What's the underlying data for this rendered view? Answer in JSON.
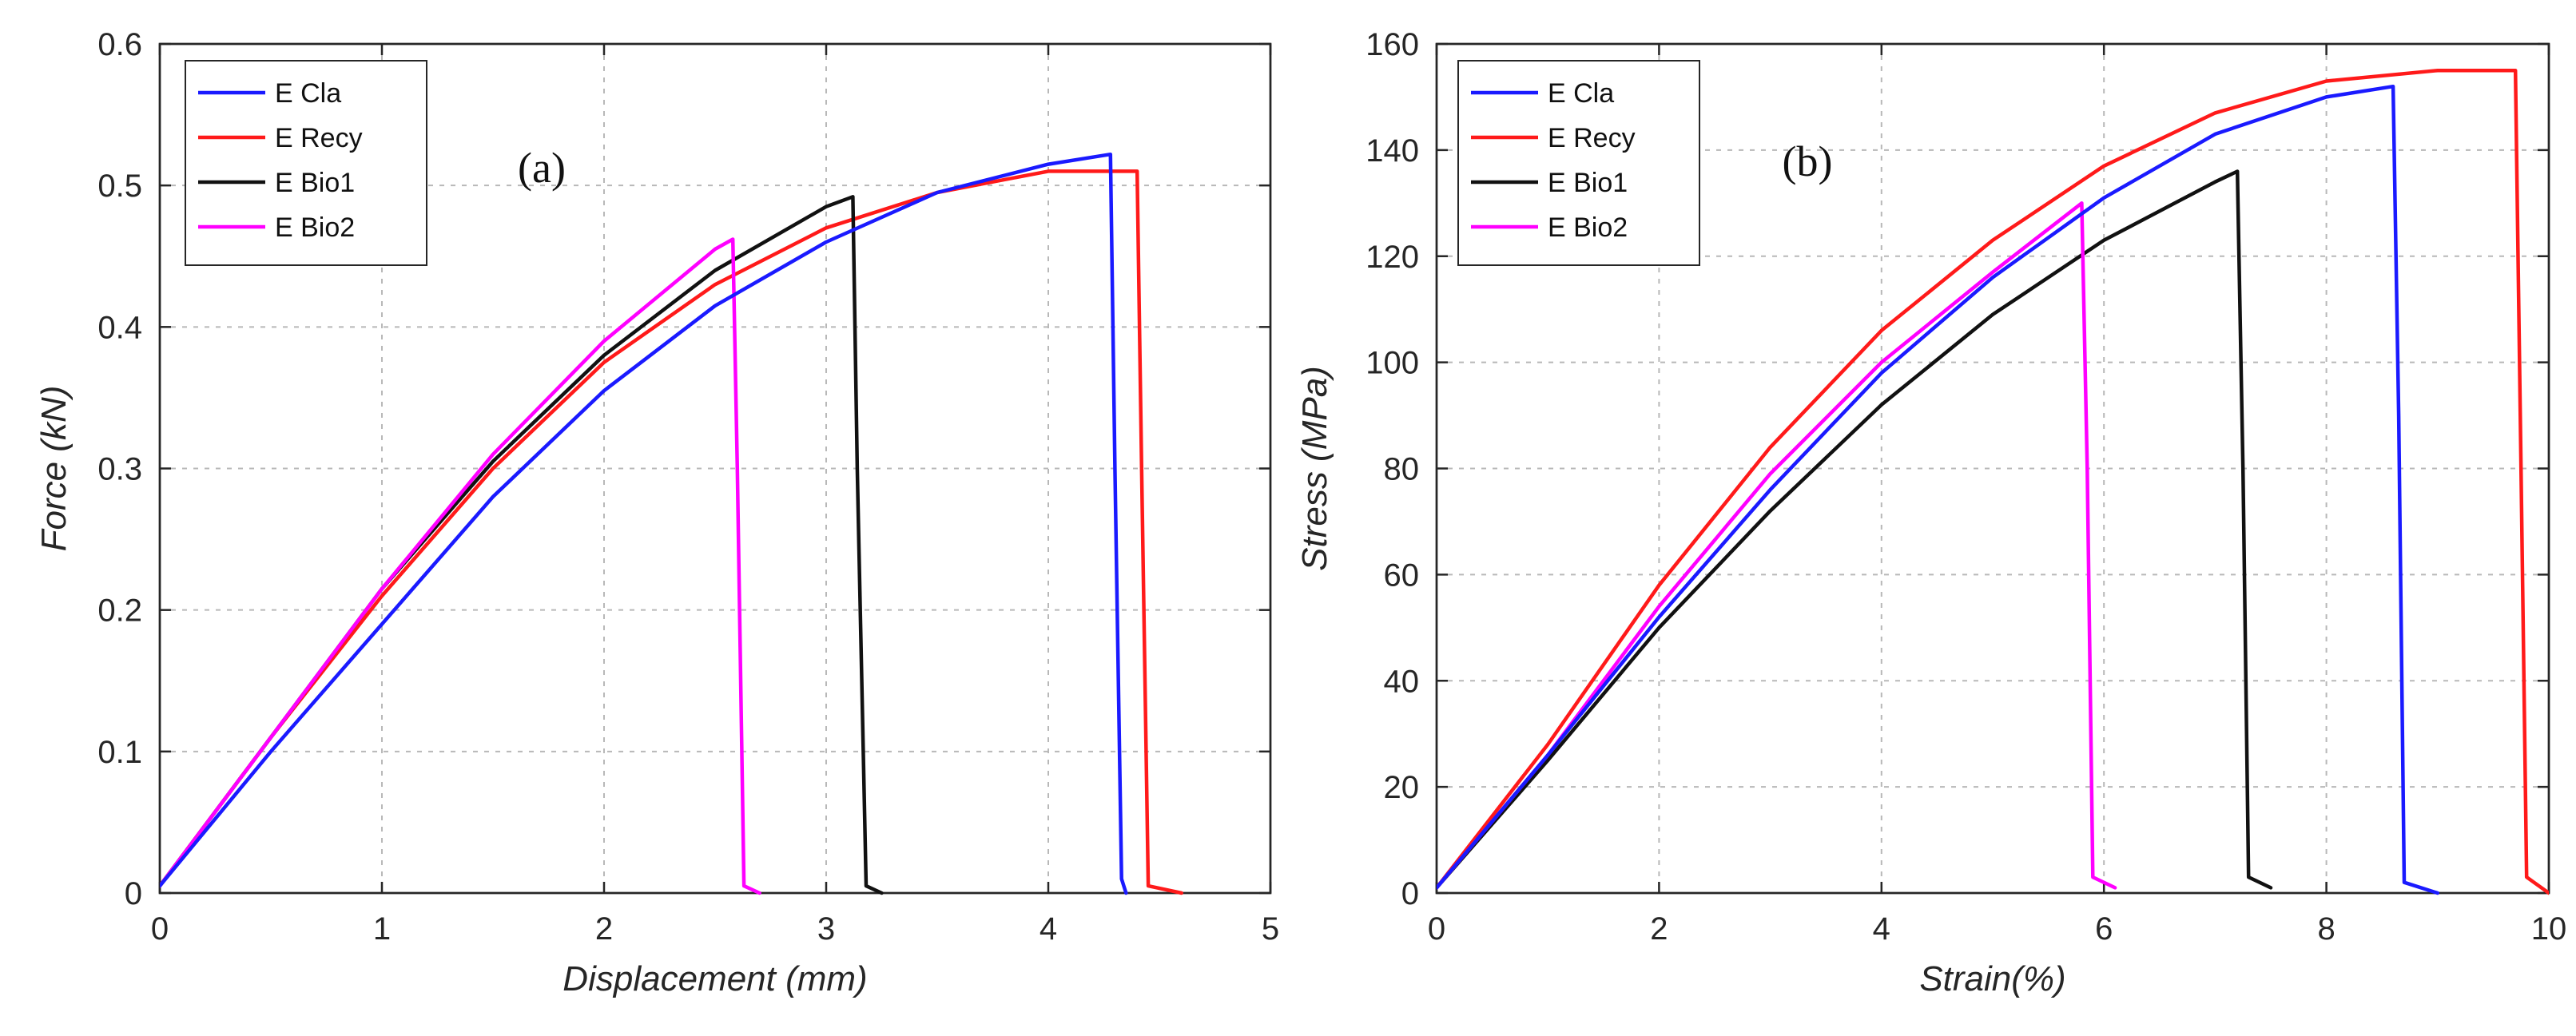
{
  "chart_data": [
    {
      "type": "line",
      "panel_label": "(a)",
      "xlabel": "Displacement (mm)",
      "ylabel": "Force (kN)",
      "xlim": [
        0,
        5
      ],
      "ylim": [
        0,
        0.6
      ],
      "xticks": [
        0,
        1,
        2,
        3,
        4,
        5
      ],
      "yticks": [
        0,
        0.1,
        0.2,
        0.3,
        0.4,
        0.5,
        0.6
      ],
      "xtick_labels": [
        "0",
        "1",
        "2",
        "3",
        "4",
        "5"
      ],
      "ytick_labels": [
        "0",
        "0.1",
        "0.2",
        "0.3",
        "0.4",
        "0.5",
        "0.6"
      ],
      "grid": true,
      "legend_position": "top-left",
      "series": [
        {
          "name": "E Cla",
          "color": "#1a1aff",
          "x": [
            0,
            0.5,
            1.0,
            1.5,
            2.0,
            2.5,
            3.0,
            3.5,
            4.0,
            4.28,
            4.3,
            4.33,
            4.35
          ],
          "y": [
            0.005,
            0.1,
            0.19,
            0.28,
            0.355,
            0.415,
            0.46,
            0.495,
            0.515,
            0.522,
            0.3,
            0.01,
            0.0
          ]
        },
        {
          "name": "E Recy",
          "color": "#ff1a1a",
          "x": [
            0,
            0.5,
            1.0,
            1.5,
            2.0,
            2.5,
            3.0,
            3.5,
            4.0,
            4.4,
            4.42,
            4.45,
            4.6
          ],
          "y": [
            0.005,
            0.11,
            0.21,
            0.3,
            0.375,
            0.43,
            0.47,
            0.495,
            0.51,
            0.51,
            0.3,
            0.005,
            0.0
          ]
        },
        {
          "name": "E Bio1",
          "color": "#111111",
          "x": [
            0,
            0.5,
            1.0,
            1.5,
            2.0,
            2.5,
            3.0,
            3.12,
            3.14,
            3.18,
            3.25
          ],
          "y": [
            0.005,
            0.11,
            0.215,
            0.305,
            0.38,
            0.44,
            0.485,
            0.492,
            0.3,
            0.005,
            0.0
          ]
        },
        {
          "name": "E Bio2",
          "color": "#ff00ff",
          "x": [
            0,
            0.5,
            1.0,
            1.5,
            2.0,
            2.5,
            2.58,
            2.6,
            2.63,
            2.7
          ],
          "y": [
            0.005,
            0.11,
            0.215,
            0.31,
            0.39,
            0.455,
            0.462,
            0.3,
            0.005,
            0.0
          ]
        }
      ]
    },
    {
      "type": "line",
      "panel_label": "(b)",
      "xlabel": "Strain(%)",
      "ylabel": "Stress (MPa)",
      "xlim": [
        0,
        10
      ],
      "ylim": [
        0,
        160
      ],
      "xticks": [
        0,
        2,
        4,
        6,
        8,
        10
      ],
      "yticks": [
        0,
        20,
        40,
        60,
        80,
        100,
        120,
        140,
        160
      ],
      "xtick_labels": [
        "0",
        "2",
        "4",
        "6",
        "8",
        "10"
      ],
      "ytick_labels": [
        "0",
        "20",
        "40",
        "60",
        "80",
        "100",
        "120",
        "140",
        "160"
      ],
      "grid": true,
      "legend_position": "top-left",
      "series": [
        {
          "name": "E Cla",
          "color": "#1a1aff",
          "x": [
            0,
            1,
            2,
            3,
            4,
            5,
            6,
            7,
            8,
            8.6,
            8.65,
            8.7,
            9.0
          ],
          "y": [
            1,
            26,
            52,
            76,
            98,
            116,
            131,
            143,
            150,
            152,
            90,
            2,
            0
          ]
        },
        {
          "name": "E Recy",
          "color": "#ff1a1a",
          "x": [
            0,
            1,
            2,
            3,
            4,
            5,
            6,
            7,
            8,
            9,
            9.7,
            9.75,
            9.8,
            10.0
          ],
          "y": [
            1,
            28,
            58,
            84,
            106,
            123,
            137,
            147,
            153,
            155,
            155,
            80,
            3,
            0
          ]
        },
        {
          "name": "E Bio1",
          "color": "#111111",
          "x": [
            0,
            1,
            2,
            3,
            4,
            5,
            6,
            7,
            7.2,
            7.25,
            7.3,
            7.5
          ],
          "y": [
            1,
            25,
            50,
            72,
            92,
            109,
            123,
            134,
            136,
            80,
            3,
            1
          ]
        },
        {
          "name": "E Bio2",
          "color": "#ff00ff",
          "x": [
            0,
            1,
            2,
            3,
            4,
            5,
            5.8,
            5.85,
            5.9,
            6.1
          ],
          "y": [
            1,
            26,
            54,
            79,
            100,
            117,
            130,
            80,
            3,
            1
          ]
        }
      ]
    }
  ]
}
